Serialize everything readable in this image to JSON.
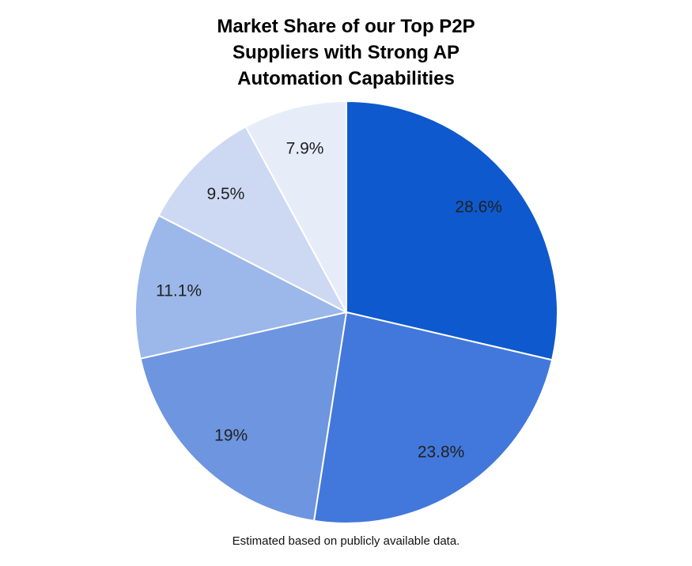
{
  "page": {
    "background": "#ffffff"
  },
  "chart": {
    "title_lines": [
      "Market Share of our Top P2P",
      "Suppliers with Strong AP",
      "Automation Capabilities"
    ],
    "footnote": "Estimated based on publicly available data."
  },
  "chart_data": {
    "type": "pie",
    "title": "Market Share of our Top P2P Suppliers with Strong AP Automation Capabilities",
    "labels": [
      "28.6%",
      "23.8%",
      "19%",
      "11.1%",
      "9.5%",
      "7.9%"
    ],
    "values": [
      28.6,
      23.8,
      19,
      11.1,
      9.5,
      7.9
    ],
    "unit": "percent",
    "colors": [
      "#0e59cd",
      "#4278db",
      "#6d95e0",
      "#9cb8ea",
      "#cdd9f3",
      "#e7ecf9"
    ],
    "slice_border_color": "#ffffff",
    "label_color": "#212121",
    "start_angle_deg": 0,
    "direction": "clockwise",
    "legend": "none",
    "annotation": "Estimated based on publicly available data."
  }
}
